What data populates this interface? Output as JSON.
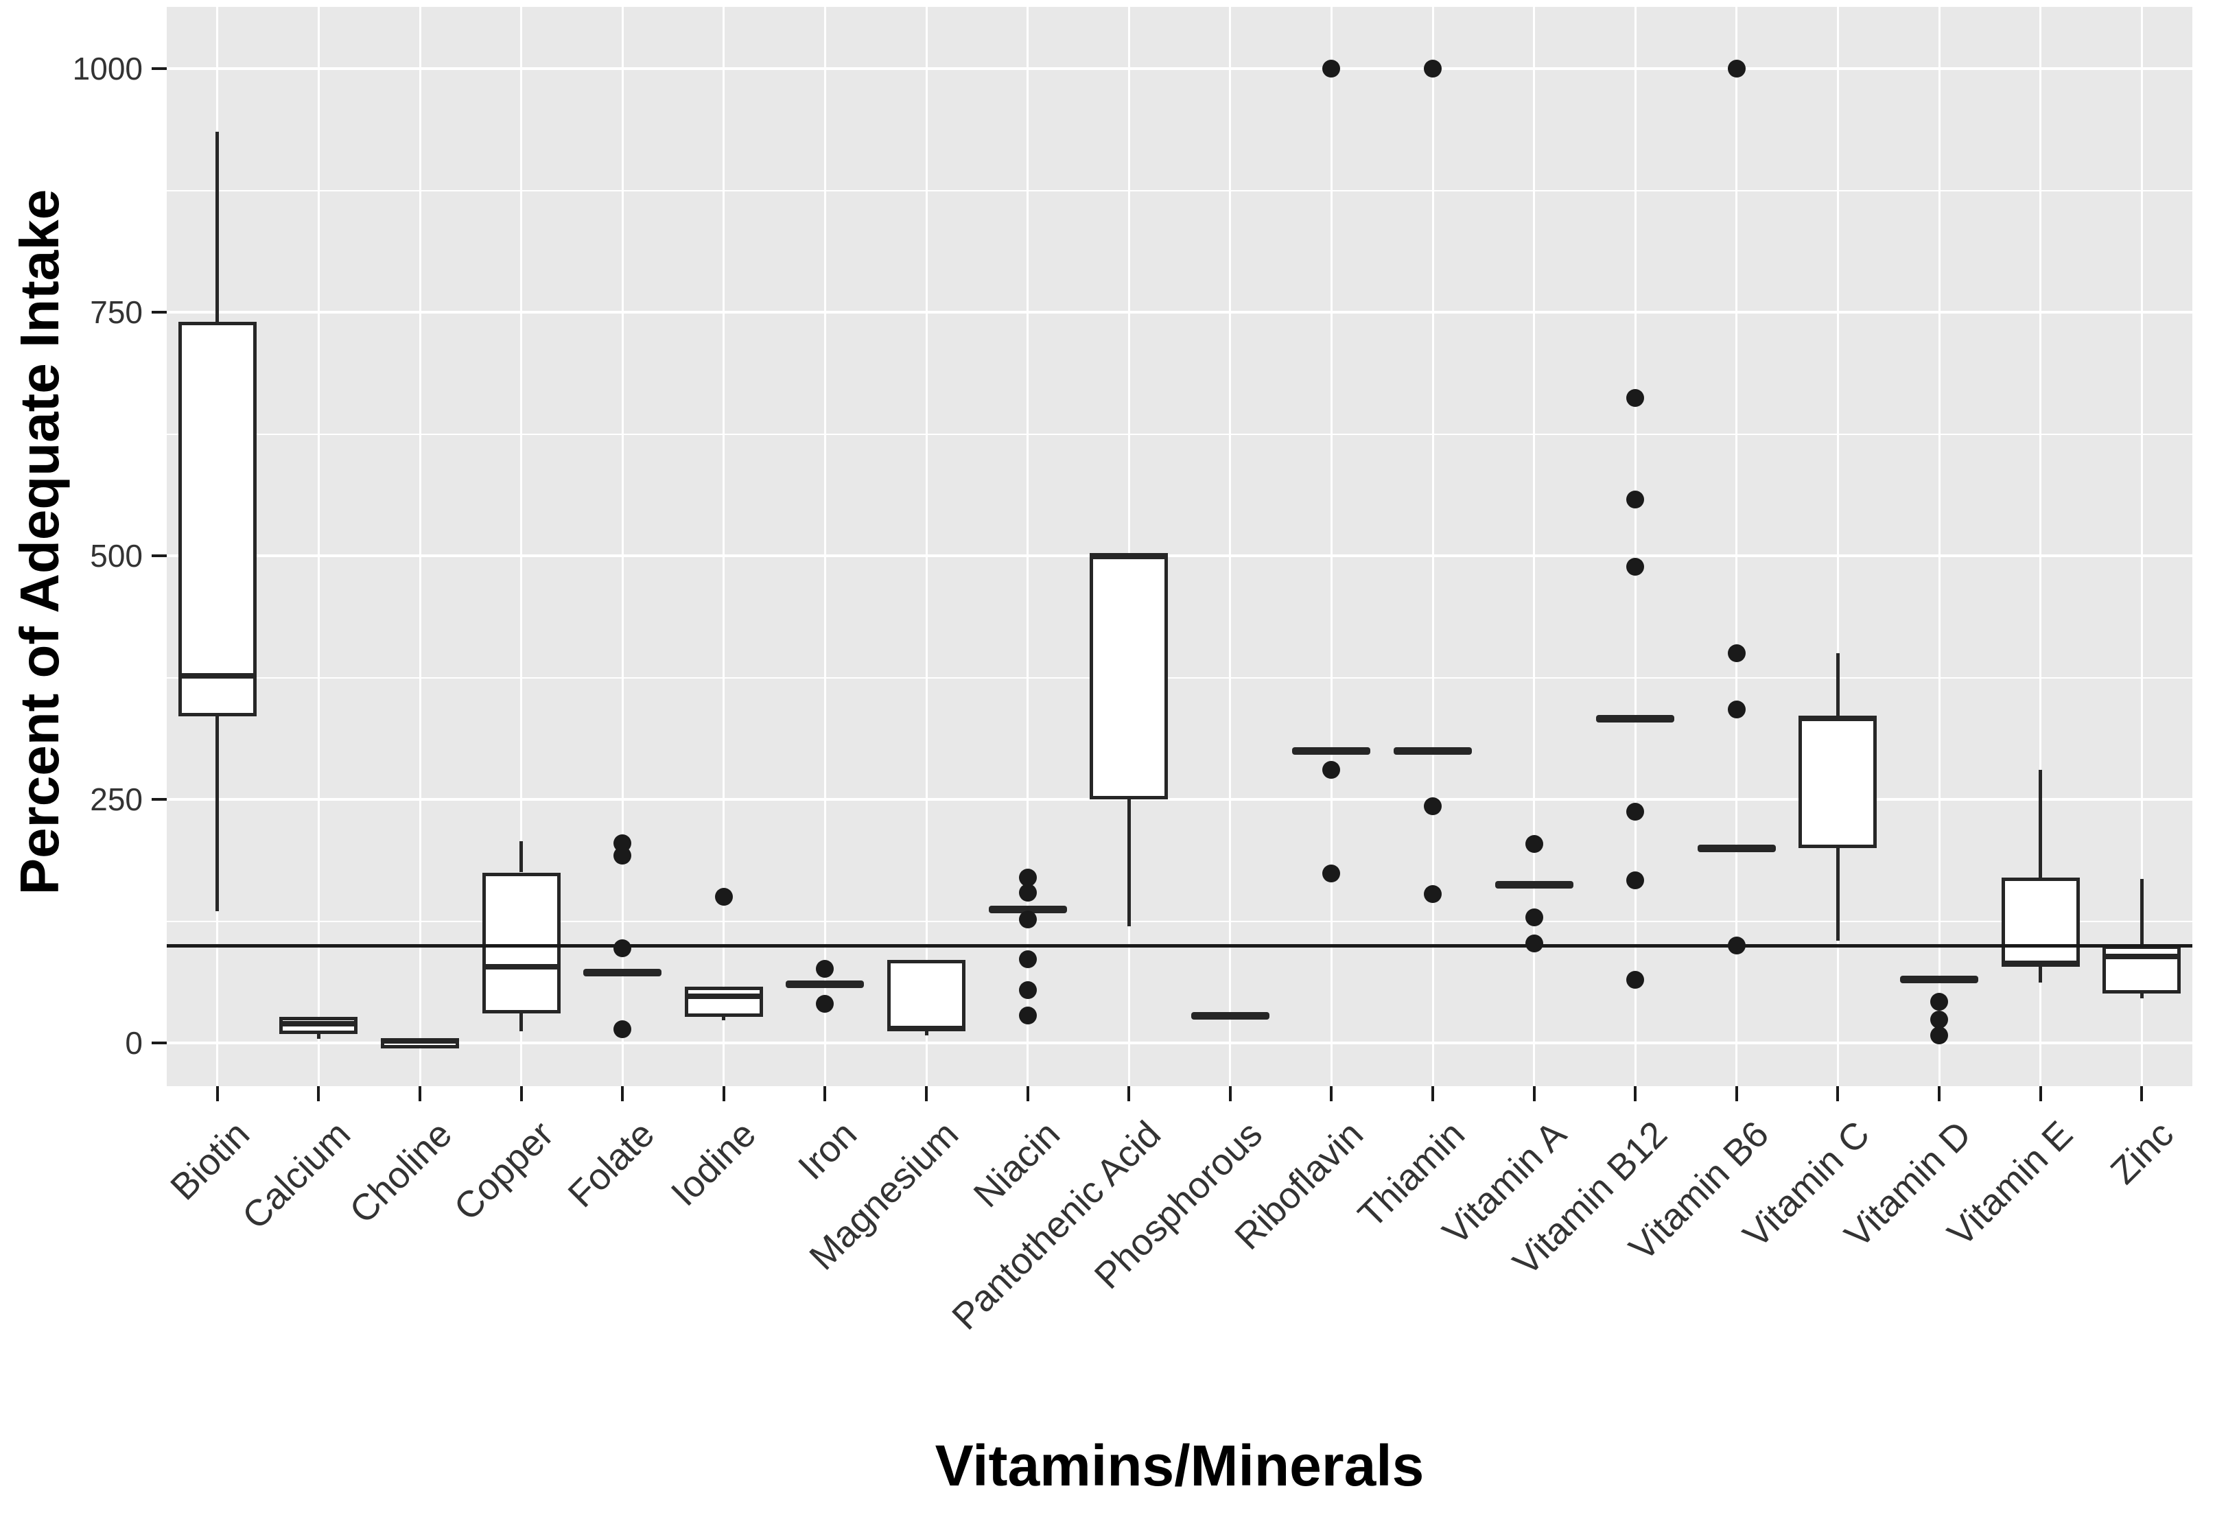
{
  "chart_data": {
    "type": "boxplot",
    "title": "",
    "xlabel": "Vitamins/Minerals",
    "ylabel": "Percent of Adequate Intake",
    "y_ticks": [
      0,
      250,
      500,
      750,
      1000
    ],
    "y_minor_gridlines": [
      125,
      375,
      625,
      875
    ],
    "ylim": [
      -45,
      1060
    ],
    "grid": "on",
    "reference_line_y": 100,
    "categories": [
      "Biotin",
      "Calcium",
      "Choline",
      "Copper",
      "Folate",
      "Iodine",
      "Iron",
      "Magnesium",
      "Niacin",
      "Pantothenic Acid",
      "Phosphorous",
      "Riboflavin",
      "Thiamin",
      "Vitamin A",
      "Vitamin B12",
      "Vitamin B6",
      "Vitamin C",
      "Vitamin D",
      "Vitamin E",
      "Zinc"
    ],
    "boxes": [
      {
        "name": "Biotin",
        "kind": "box",
        "lo": 135,
        "q1": 335,
        "med": 377,
        "q3": 740,
        "hi": 935,
        "outliers": []
      },
      {
        "name": "Calcium",
        "kind": "box",
        "lo": 4,
        "q1": 9,
        "med": 20,
        "q3": 27,
        "hi": null,
        "outliers": []
      },
      {
        "name": "Choline",
        "kind": "box",
        "lo": null,
        "q1": 0,
        "med": 2,
        "q3": 4,
        "hi": null,
        "outliers": []
      },
      {
        "name": "Copper",
        "kind": "box",
        "lo": 12,
        "q1": 30,
        "med": 78,
        "q3": 175,
        "hi": 207,
        "outliers": []
      },
      {
        "name": "Folate",
        "kind": "bar",
        "med": 72,
        "outliers": [
          205,
          192,
          97,
          14
        ]
      },
      {
        "name": "Iodine",
        "kind": "box",
        "lo": 23,
        "q1": 27,
        "med": 48,
        "q3": 58,
        "hi": null,
        "outliers": [
          150
        ]
      },
      {
        "name": "Iron",
        "kind": "bar",
        "med": 60,
        "outliers": [
          76,
          40
        ]
      },
      {
        "name": "Magnesium",
        "kind": "box",
        "lo": 8,
        "q1": 12,
        "med": 15,
        "q3": 85,
        "hi": null,
        "outliers": []
      },
      {
        "name": "Niacin",
        "kind": "bar",
        "med": 137,
        "outliers": [
          170,
          154,
          127,
          86,
          54,
          28
        ]
      },
      {
        "name": "Pantothenic Acid",
        "kind": "box",
        "lo": 120,
        "q1": 250,
        "med": 500,
        "q3": 500,
        "hi": null,
        "outliers": []
      },
      {
        "name": "Phosphorous",
        "kind": "bar",
        "med": 28,
        "outliers": []
      },
      {
        "name": "Riboflavin",
        "kind": "bar",
        "med": 300,
        "outliers": [
          1000,
          280,
          174
        ]
      },
      {
        "name": "Thiamin",
        "kind": "bar",
        "med": 300,
        "outliers": [
          1000,
          243,
          153
        ]
      },
      {
        "name": "Vitamin A",
        "kind": "bar",
        "med": 162,
        "outliers": [
          204,
          129,
          102
        ]
      },
      {
        "name": "Vitamin B12",
        "kind": "bar",
        "med": 333,
        "outliers": [
          662,
          558,
          489,
          237,
          167,
          65
        ]
      },
      {
        "name": "Vitamin B6",
        "kind": "bar",
        "med": 200,
        "outliers": [
          1000,
          400,
          342,
          100
        ]
      },
      {
        "name": "Vitamin C",
        "kind": "box",
        "lo": 105,
        "q1": 200,
        "med": 333,
        "q3": 336,
        "hi": 400,
        "outliers": []
      },
      {
        "name": "Vitamin D",
        "kind": "bar",
        "med": 65,
        "outliers": [
          42,
          24,
          8
        ]
      },
      {
        "name": "Vitamin E",
        "kind": "box",
        "lo": 62,
        "q1": 78,
        "med": 82,
        "q3": 170,
        "hi": 280,
        "outliers": []
      },
      {
        "name": "Zinc",
        "kind": "box",
        "lo": 46,
        "q1": 51,
        "med": 89,
        "q3": 100,
        "hi": 168,
        "outliers": []
      }
    ],
    "colors": {
      "panel_bg": "#e8e8e8",
      "grid": "#ffffff",
      "box_fill": "#ffffff",
      "box_border": "#262626",
      "outlier": "#1a1a1a",
      "reference_line": "#1a1a1a",
      "axis_text": "#333333",
      "title_text": "#000000"
    }
  }
}
